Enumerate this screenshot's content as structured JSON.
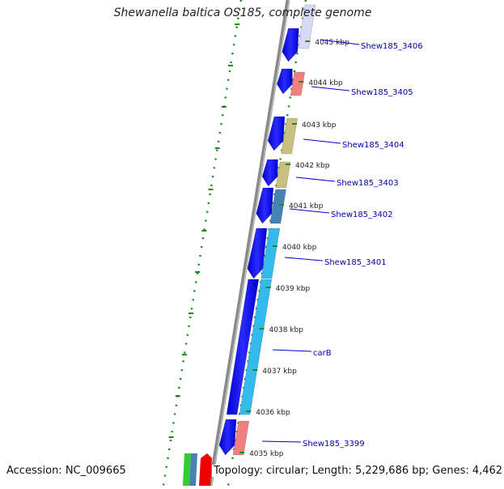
{
  "title": "Shewanella baltica OS185, complete genome",
  "accession": "Accession: NC_009665",
  "topology": "Topology: circular; Length: 5,229,686 bp; Genes: 4,462",
  "colors": {
    "backbone": "#8a8a8a",
    "tick_ring": "#1a8a1a",
    "forward_cds": "#0000ee",
    "label_line": "#0000cc",
    "label_text": "#0000aa",
    "kbp_text": "#222222"
  },
  "ruler": [
    "4045 kbp",
    "4044 kbp",
    "4043 kbp",
    "4042 kbp",
    "4041 kbp",
    "4040 kbp",
    "4039 kbp",
    "4038 kbp",
    "4037 kbp",
    "4036 kbp",
    "4035 kbp"
  ],
  "gene_labels": [
    "Shew185_3406",
    "Shew185_3405",
    "Shew185_3404",
    "Shew185_3403",
    "Shew185_3402",
    "Shew185_3401",
    "carB",
    "Shew185_3399"
  ],
  "category_colors": [
    "#d8d8f8",
    "#f08080",
    "#c8c080",
    "#c8c080",
    "#4682b4",
    "#33bbee",
    "#f08080"
  ]
}
